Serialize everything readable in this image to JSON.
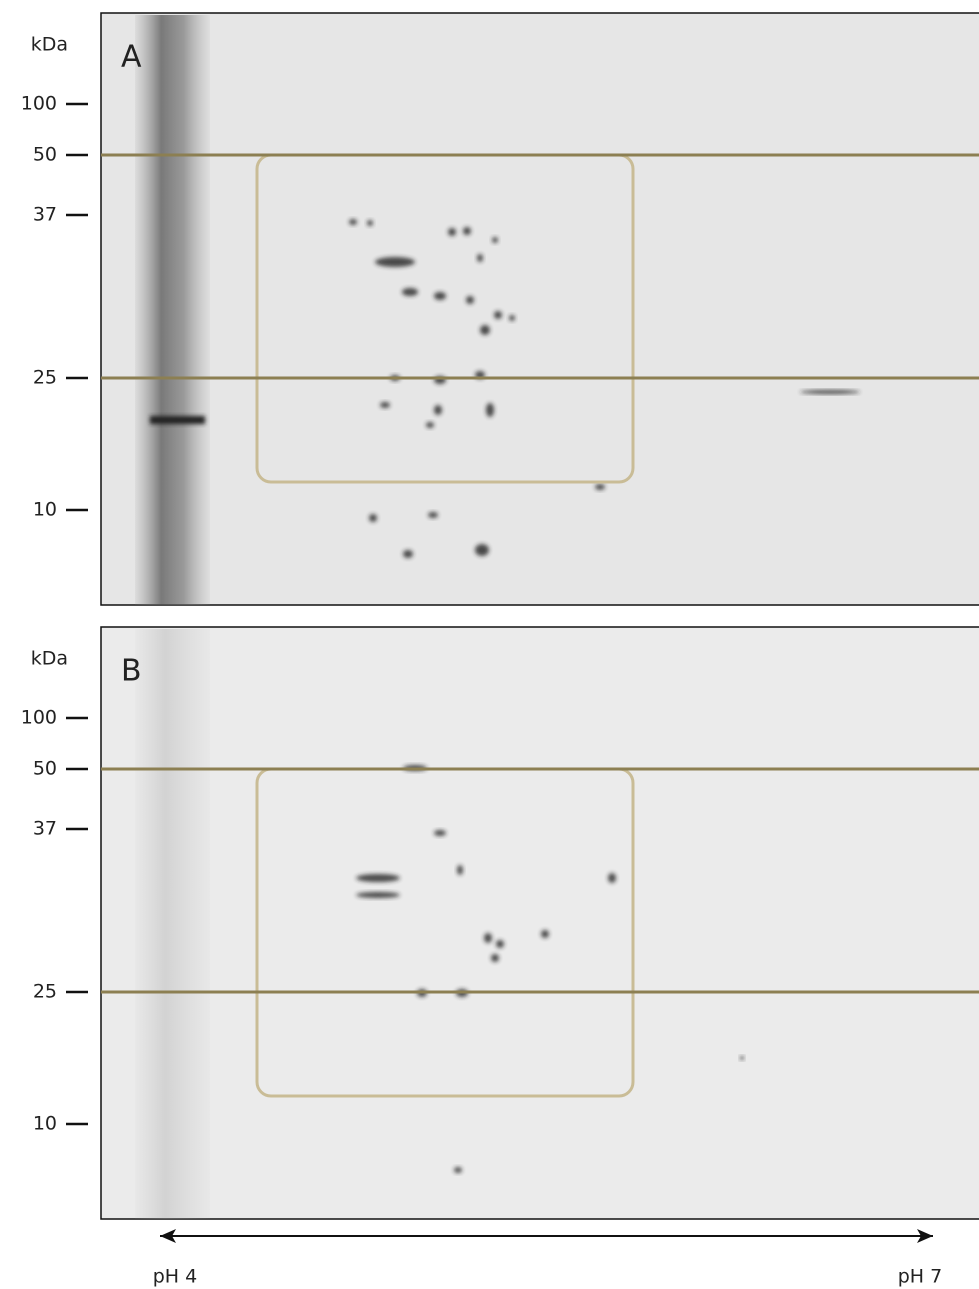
{
  "panels": [
    {
      "label": "A",
      "unit": "kDa",
      "markers": [
        "100",
        "50",
        "37",
        "25",
        "10"
      ]
    },
    {
      "label": "B",
      "unit": "kDa",
      "markers": [
        "100",
        "50",
        "37",
        "25",
        "10"
      ]
    }
  ],
  "axis": {
    "left": "pH 4",
    "right": "pH 7"
  }
}
